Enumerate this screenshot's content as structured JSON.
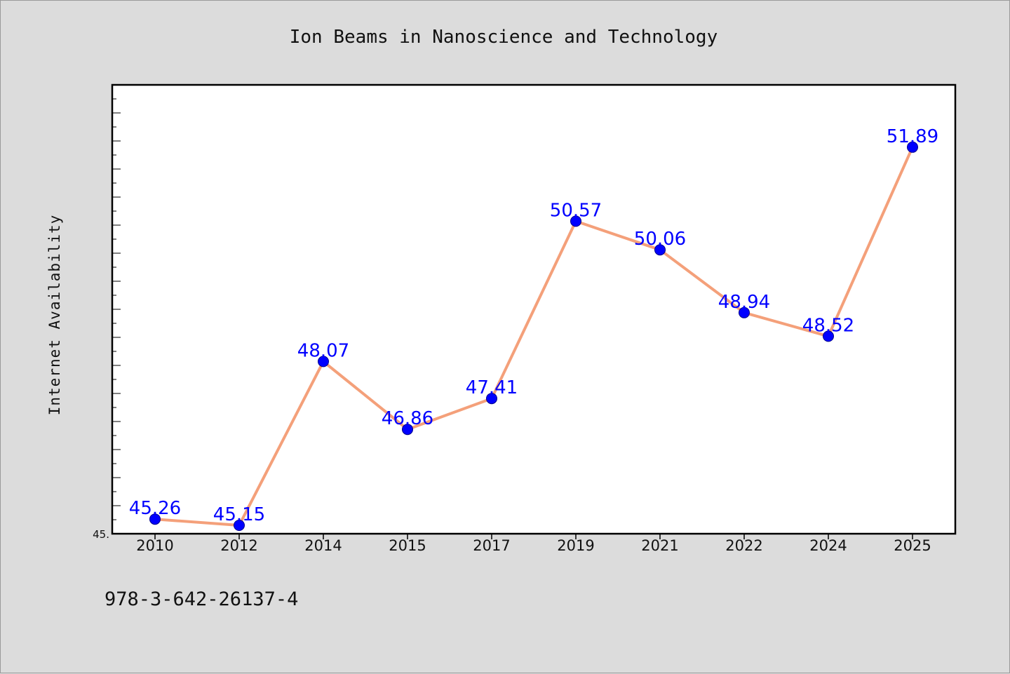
{
  "footer_text": "978-3-642-26137-4",
  "colors": {
    "page_background": "#dcdcdc",
    "plot_background": "#ffffff",
    "line": "#f4a07a",
    "marker": "#0000ff",
    "data_label": "#0000ff"
  },
  "chart_data": {
    "type": "line",
    "title": "Ion Beams in Nanoscience and Technology",
    "xlabel": "",
    "ylabel": "Internet Availability",
    "categories": [
      "2010",
      "2012",
      "2014",
      "2015",
      "2017",
      "2019",
      "2021",
      "2022",
      "2024",
      "2025"
    ],
    "series": [
      {
        "values": [
          45.26,
          45.15,
          48.07,
          46.86,
          47.41,
          50.57,
          50.06,
          48.94,
          48.52,
          51.89
        ],
        "labels": [
          "45.26",
          "45.15",
          "48.07",
          "46.86",
          "47.41",
          "50.57",
          "50.06",
          "48.94",
          "48.52",
          "51.89"
        ]
      }
    ],
    "ylim": [
      45.0,
      53.0
    ],
    "ytick_labels": [
      "45."
    ],
    "grid": false,
    "legend": "none"
  }
}
